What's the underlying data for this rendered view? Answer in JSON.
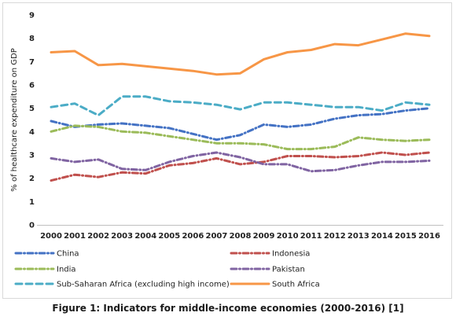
{
  "chart_data": {
    "type": "line",
    "title": "",
    "ylabel": "% of healthcare expenditure on GDP",
    "xlabel": "",
    "ylim": [
      0,
      9
    ],
    "yticks": [
      0,
      1,
      2,
      3,
      4,
      5,
      6,
      7,
      8,
      9
    ],
    "grid": false,
    "legend_position": "bottom",
    "categories": [
      "2000",
      "2001",
      "2002",
      "2003",
      "2004",
      "2005",
      "2006",
      "2007",
      "2008",
      "2009",
      "2010",
      "2011",
      "2012",
      "2013",
      "2014",
      "2015",
      "2016"
    ],
    "series": [
      {
        "name": "China",
        "color": "#4472c4",
        "dash": "dashed-dot",
        "values": [
          4.45,
          4.2,
          4.3,
          4.35,
          4.25,
          4.15,
          3.9,
          3.65,
          3.85,
          4.3,
          4.2,
          4.3,
          4.55,
          4.7,
          4.75,
          4.9,
          5.0
        ]
      },
      {
        "name": "Indonesia",
        "color": "#c0504d",
        "dash": "dashed-dot",
        "values": [
          1.9,
          2.15,
          2.05,
          2.25,
          2.2,
          2.55,
          2.65,
          2.85,
          2.6,
          2.7,
          2.95,
          2.95,
          2.9,
          2.95,
          3.1,
          3.0,
          3.1
        ]
      },
      {
        "name": "India",
        "color": "#9bbb59",
        "dash": "dashed-dot",
        "values": [
          4.0,
          4.25,
          4.2,
          4.0,
          3.95,
          3.8,
          3.65,
          3.5,
          3.5,
          3.45,
          3.25,
          3.25,
          3.35,
          3.75,
          3.65,
          3.6,
          3.65
        ]
      },
      {
        "name": "Pakistan",
        "color": "#8064a2",
        "dash": "dashed-dot",
        "values": [
          2.85,
          2.7,
          2.8,
          2.4,
          2.35,
          2.7,
          2.95,
          3.1,
          2.9,
          2.6,
          2.6,
          2.3,
          2.35,
          2.55,
          2.7,
          2.7,
          2.75
        ]
      },
      {
        "name": "Sub-Saharan Africa (excluding high income)",
        "color": "#4bacc6",
        "dash": "dashed",
        "values": [
          5.05,
          5.2,
          4.7,
          5.5,
          5.5,
          5.3,
          5.25,
          5.15,
          4.95,
          5.25,
          5.25,
          5.15,
          5.05,
          5.05,
          4.9,
          5.25,
          5.15
        ]
      },
      {
        "name": "South Africa",
        "color": "#f79646",
        "dash": "solid",
        "values": [
          7.4,
          7.45,
          6.85,
          6.9,
          6.8,
          6.7,
          6.6,
          6.45,
          6.5,
          7.1,
          7.4,
          7.5,
          7.75,
          7.7,
          7.95,
          8.2,
          8.1
        ]
      }
    ]
  },
  "caption": "Figure 1: Indicators for middle-income economies (2000-2016) [1]"
}
